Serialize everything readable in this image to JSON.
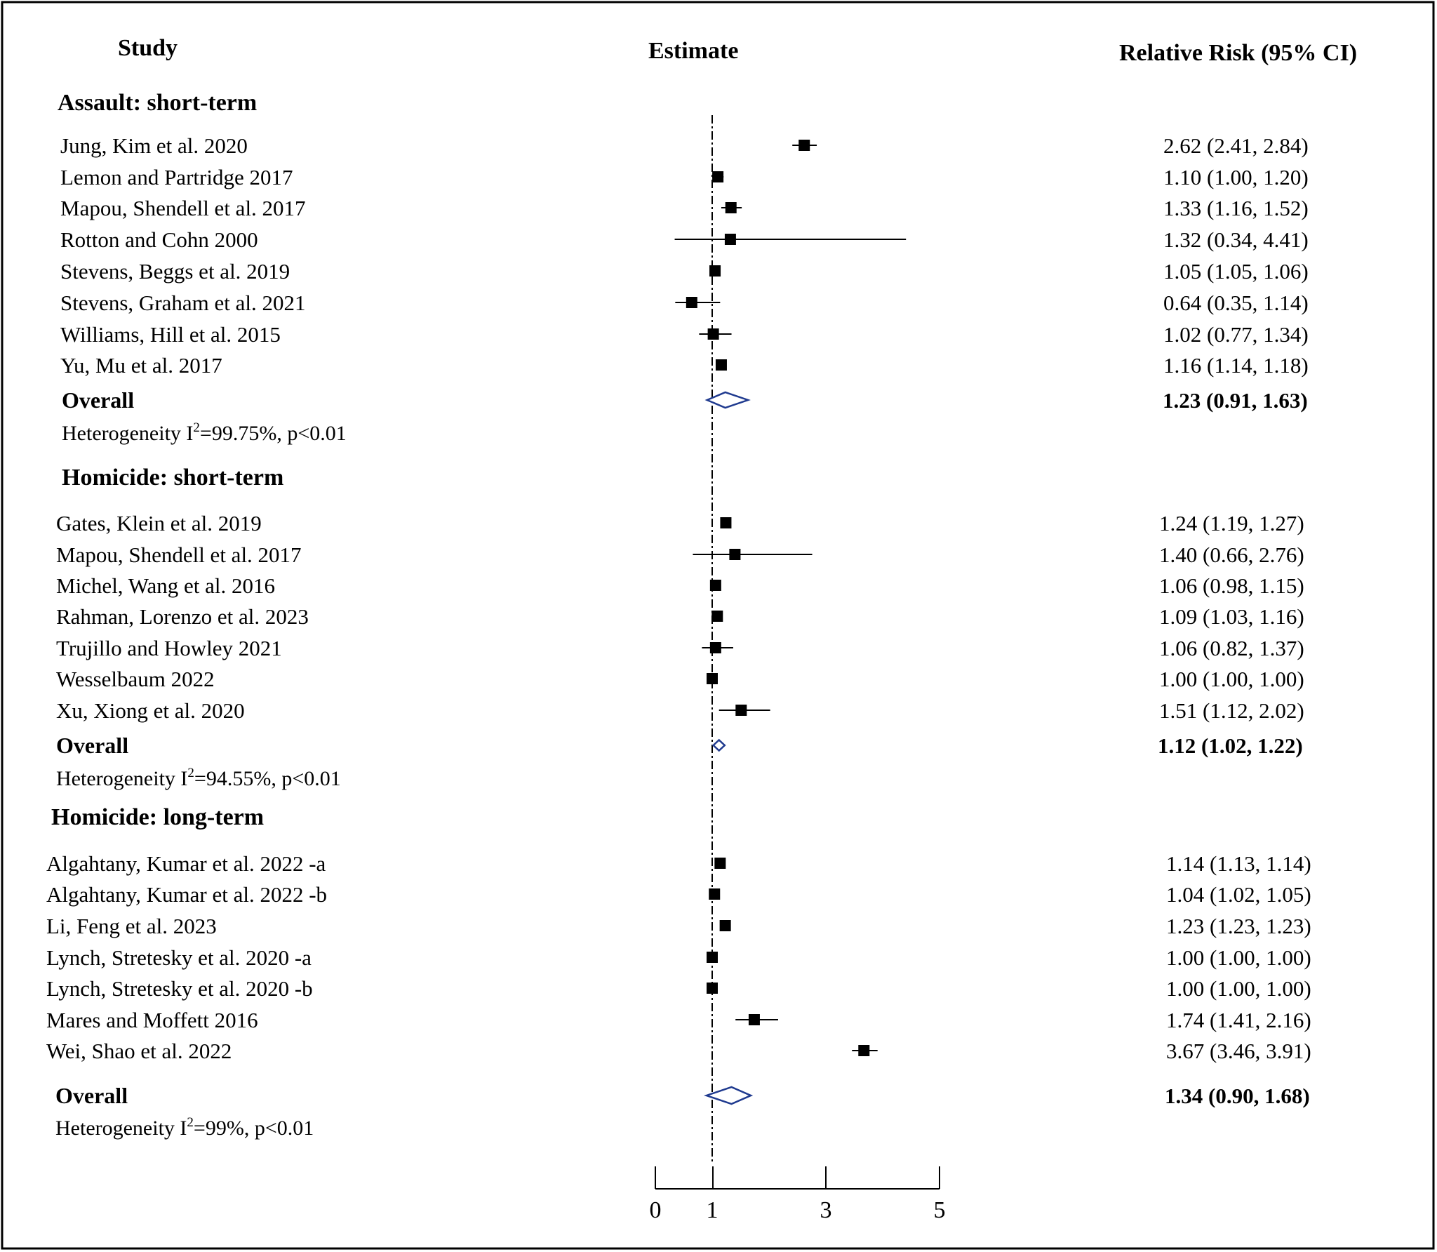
{
  "chart_data": {
    "type": "forest",
    "headers": {
      "study": "Study",
      "estimate": "Estimate",
      "ci": "Relative Risk (95% CI)"
    },
    "x_ticks": [
      0,
      1,
      3,
      5
    ],
    "reference_line": 1,
    "groups": [
      {
        "name": "Assault: short-term",
        "studies": [
          {
            "label": "Jung, Kim et al. 2020",
            "rr": 2.62,
            "lo": 2.41,
            "hi": 2.84,
            "ci_text": "2.62 (2.41, 2.84)"
          },
          {
            "label": "Lemon and Partridge 2017",
            "rr": 1.1,
            "lo": 1.0,
            "hi": 1.2,
            "ci_text": "1.10 (1.00, 1.20)"
          },
          {
            "label": "Mapou, Shendell et al. 2017",
            "rr": 1.33,
            "lo": 1.16,
            "hi": 1.52,
            "ci_text": "1.33 (1.16, 1.52)"
          },
          {
            "label": "Rotton and Cohn 2000",
            "rr": 1.32,
            "lo": 0.34,
            "hi": 4.41,
            "ci_text": "1.32 (0.34, 4.41)"
          },
          {
            "label": "Stevens, Beggs et al. 2019",
            "rr": 1.05,
            "lo": 1.05,
            "hi": 1.06,
            "ci_text": "1.05 (1.05, 1.06)"
          },
          {
            "label": "Stevens, Graham et al. 2021",
            "rr": 0.64,
            "lo": 0.35,
            "hi": 1.14,
            "ci_text": "0.64 (0.35, 1.14)"
          },
          {
            "label": "Williams, Hill et al. 2015",
            "rr": 1.02,
            "lo": 0.77,
            "hi": 1.34,
            "ci_text": "1.02 (0.77, 1.34)"
          },
          {
            "label": "Yu, Mu et al. 2017",
            "rr": 1.16,
            "lo": 1.14,
            "hi": 1.18,
            "ci_text": "1.16 (1.14, 1.18)"
          }
        ],
        "overall": {
          "label": "Overall",
          "rr": 1.23,
          "lo": 0.91,
          "hi": 1.63,
          "ci_text": "1.23 (0.91, 1.63)"
        },
        "heterogeneity": {
          "prefix": "Heterogeneity I",
          "sup": "2",
          "suffix": "=99.75%, p<0.01"
        }
      },
      {
        "name": "Homicide: short-term",
        "studies": [
          {
            "label": "Gates, Klein et al. 2019",
            "rr": 1.24,
            "lo": 1.19,
            "hi": 1.27,
            "ci_text": "1.24 (1.19, 1.27)"
          },
          {
            "label": "Mapou, Shendell et al. 2017",
            "rr": 1.4,
            "lo": 0.66,
            "hi": 2.76,
            "ci_text": "1.40 (0.66, 2.76)"
          },
          {
            "label": "Michel, Wang et al. 2016",
            "rr": 1.06,
            "lo": 0.98,
            "hi": 1.15,
            "ci_text": "1.06 (0.98, 1.15)"
          },
          {
            "label": "Rahman, Lorenzo et al. 2023",
            "rr": 1.09,
            "lo": 1.03,
            "hi": 1.16,
            "ci_text": "1.09 (1.03, 1.16)"
          },
          {
            "label": "Trujillo and Howley 2021",
            "rr": 1.06,
            "lo": 0.82,
            "hi": 1.37,
            "ci_text": "1.06 (0.82, 1.37)"
          },
          {
            "label": "Wesselbaum 2022",
            "rr": 1.0,
            "lo": 1.0,
            "hi": 1.0,
            "ci_text": "1.00 (1.00, 1.00)"
          },
          {
            "label": "Xu, Xiong et al. 2020",
            "rr": 1.51,
            "lo": 1.12,
            "hi": 2.02,
            "ci_text": "1.51 (1.12, 2.02)"
          }
        ],
        "overall": {
          "label": "Overall",
          "rr": 1.12,
          "lo": 1.02,
          "hi": 1.22,
          "ci_text": "1.12 (1.02, 1.22)"
        },
        "heterogeneity": {
          "prefix": "Heterogeneity I",
          "sup": "2",
          "suffix": "=94.55%, p<0.01"
        }
      },
      {
        "name": "Homicide: long-term",
        "studies": [
          {
            "label": "Algahtany, Kumar et al. 2022 -a",
            "rr": 1.14,
            "lo": 1.13,
            "hi": 1.14,
            "ci_text": "1.14 (1.13, 1.14)"
          },
          {
            "label": "Algahtany, Kumar et al. 2022 -b",
            "rr": 1.04,
            "lo": 1.02,
            "hi": 1.05,
            "ci_text": "1.04 (1.02, 1.05)"
          },
          {
            "label": "Li, Feng et al. 2023",
            "rr": 1.23,
            "lo": 1.23,
            "hi": 1.23,
            "ci_text": "1.23 (1.23, 1.23)"
          },
          {
            "label": "Lynch, Stretesky et al. 2020 -a",
            "rr": 1.0,
            "lo": 1.0,
            "hi": 1.0,
            "ci_text": "1.00 (1.00, 1.00)"
          },
          {
            "label": "Lynch, Stretesky et al. 2020 -b",
            "rr": 1.0,
            "lo": 1.0,
            "hi": 1.0,
            "ci_text": "1.00 (1.00, 1.00)"
          },
          {
            "label": "Mares and Moffett 2016",
            "rr": 1.74,
            "lo": 1.41,
            "hi": 2.16,
            "ci_text": "1.74 (1.41, 2.16)"
          },
          {
            "label": "Wei, Shao et al. 2022",
            "rr": 3.67,
            "lo": 3.46,
            "hi": 3.91,
            "ci_text": "3.67 (3.46, 3.91)"
          }
        ],
        "overall": {
          "label": "Overall",
          "rr": 1.34,
          "lo": 0.9,
          "hi": 1.68,
          "ci_text": "1.34 (0.90, 1.68)"
        },
        "heterogeneity": {
          "prefix": "Heterogeneity I",
          "sup": "2",
          "suffix": "=99%, p<0.01"
        }
      }
    ]
  }
}
